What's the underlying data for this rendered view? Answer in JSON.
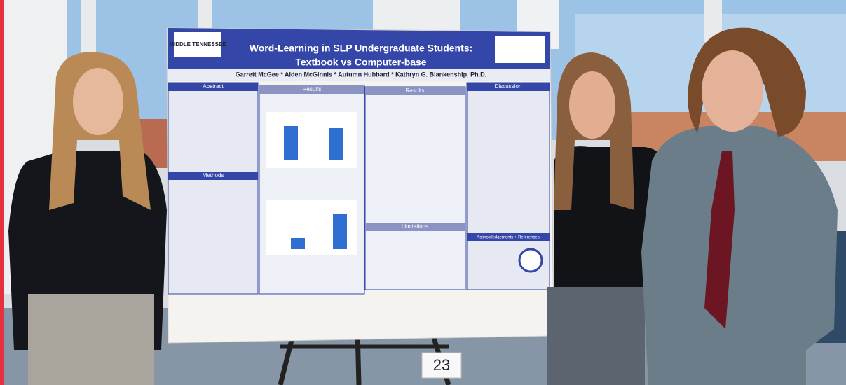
{
  "poster": {
    "logo": "MIDDLE TENNESSEE",
    "title": "Word-Learning in SLP Undergraduate Students:",
    "subtitle": "Textbook vs Computer-base",
    "authors": "Garrett McGee * Alden McGinnis * Autumn Hubbard * Kathryn G. Blankenship, Ph.D.",
    "sections": {
      "abstract": "Abstract",
      "methods": "Methods",
      "results_left": "Results",
      "results_right": "Results",
      "limitations": "Limitations",
      "discussion": "Discussion",
      "acknowledgements": "Acknowledgements + References"
    }
  },
  "placard": "23"
}
